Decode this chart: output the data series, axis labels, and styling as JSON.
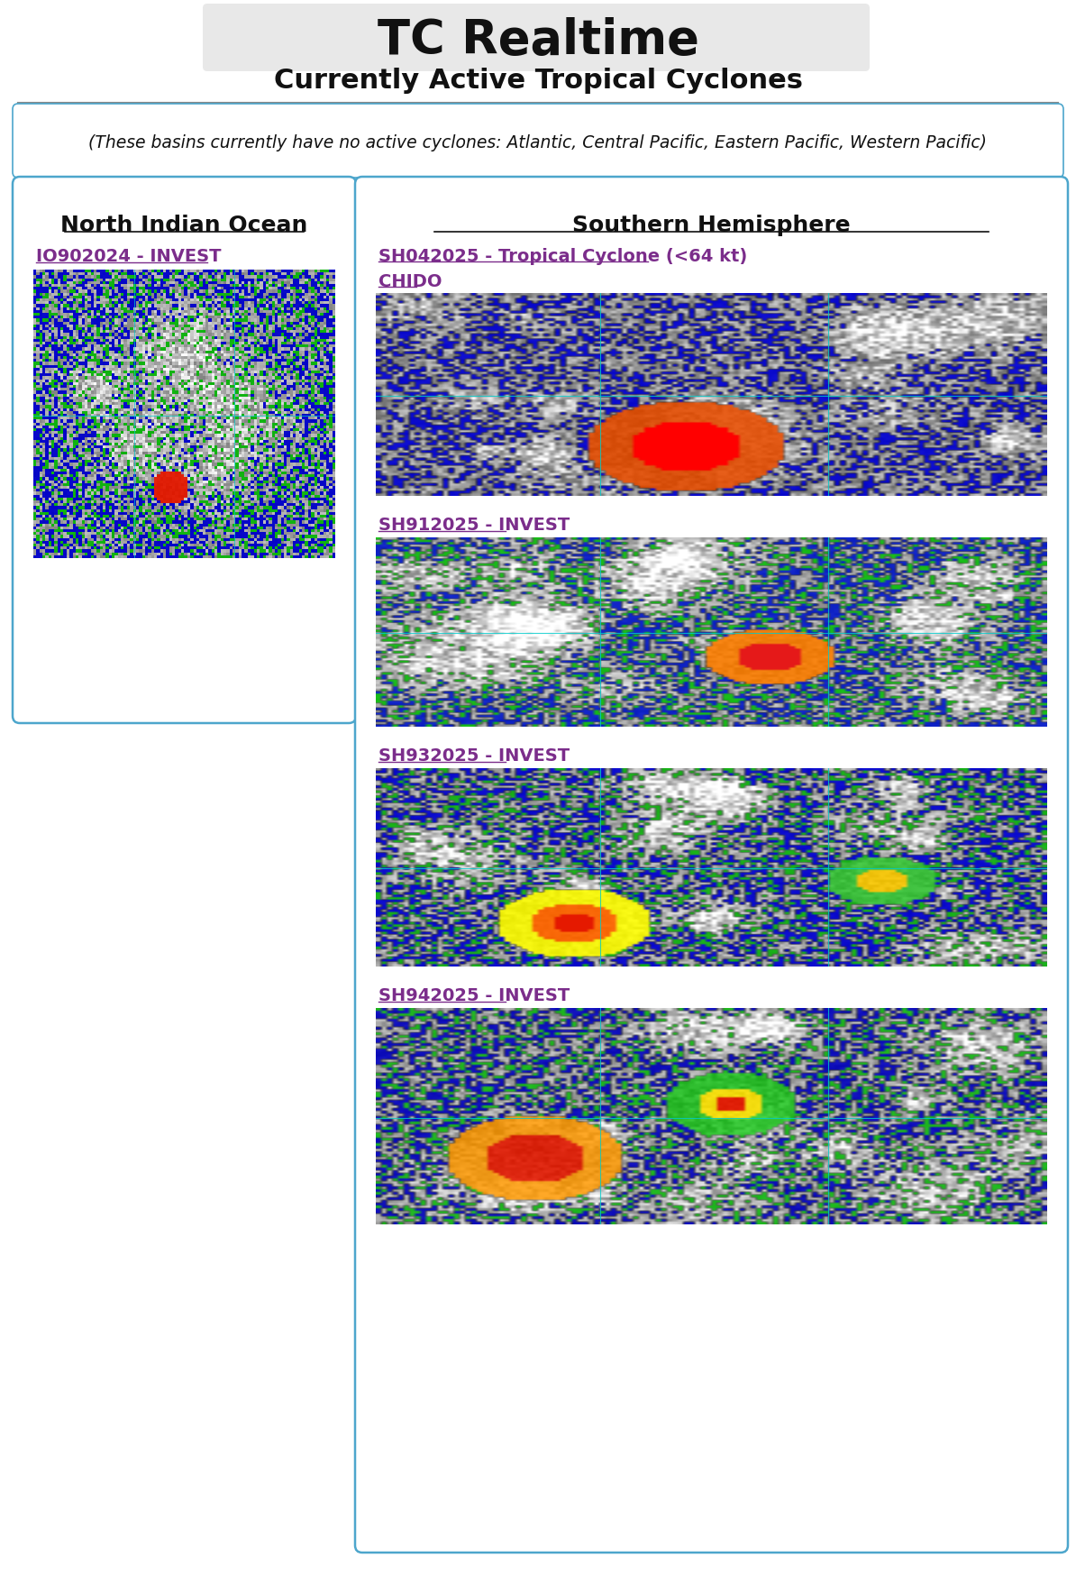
{
  "title": "TC Realtime",
  "subtitle": "Currently Active Tropical Cyclones",
  "no_activity_text": "(These basins currently have no active cyclones: Atlantic, Central Pacific, Eastern Pacific, Western Pacific)",
  "left_panel_title": "North Indian Ocean",
  "right_panel_title": "Southern Hemisphere",
  "left_links": [
    {
      "text": "IO902024 - INVEST",
      "color": "#7B2D8B"
    }
  ],
  "right_links": [
    {
      "text1": "SH042025 - Tropical Cyclone (<64 kt)",
      "text2": "CHIDO",
      "color": "#7B2D8B"
    },
    {
      "text1": "SH912025 - INVEST",
      "text2": "",
      "color": "#7B2D8B"
    },
    {
      "text1": "SH932025 - INVEST",
      "text2": "",
      "color": "#7B2D8B"
    },
    {
      "text1": "SH942025 - INVEST",
      "text2": "",
      "color": "#7B2D8B"
    }
  ],
  "bg_color": "#ffffff",
  "title_bg": "#e8e8e8",
  "panel_border_color": "#4da6cc",
  "separator_color": "#888888"
}
